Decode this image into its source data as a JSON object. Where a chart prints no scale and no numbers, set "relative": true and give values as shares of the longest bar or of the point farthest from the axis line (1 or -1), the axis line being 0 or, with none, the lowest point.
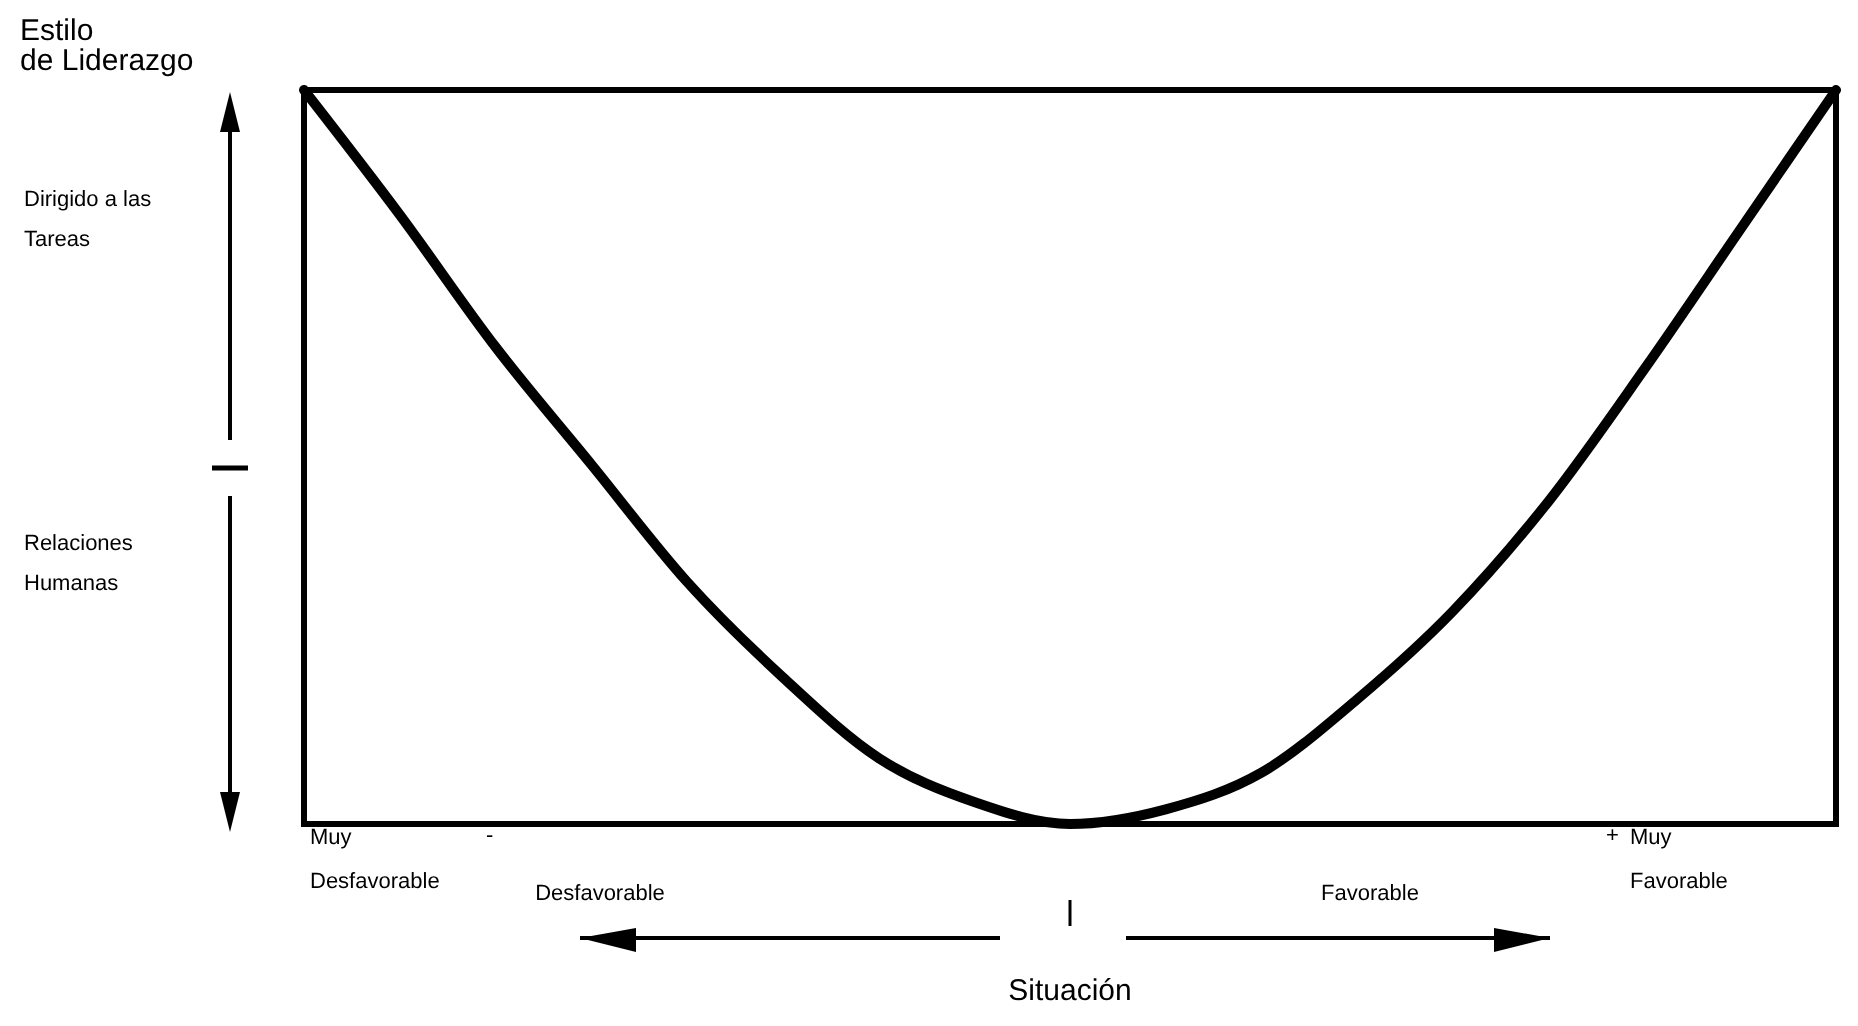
{
  "chart_data": {
    "type": "line",
    "relative": true,
    "ylabel": "Estilo de Liderazgo",
    "xlabel": "Situación",
    "categories": [
      null,
      null,
      null,
      null,
      null,
      null,
      null,
      null,
      null,
      null,
      null,
      null,
      null,
      null,
      null,
      null,
      null
    ],
    "series": [
      {
        "color": "#000000",
        "values": [
          1,
          0.83,
          0.65,
          0.49,
          0.33,
          0.2,
          0.09,
          0.03,
          0,
          0.02,
          0.07,
          0.17,
          0.29,
          0.44,
          0.62,
          0.81,
          1
        ]
      }
    ],
    "annotations": [
      "Dirigido a las Tareas",
      "Relaciones Humanas",
      "Muy Desfavorable",
      "-",
      "Desfavorable",
      "Favorable",
      "+",
      "Muy Favorable"
    ],
    "marker": "none",
    "line_style": "solid"
  }
}
